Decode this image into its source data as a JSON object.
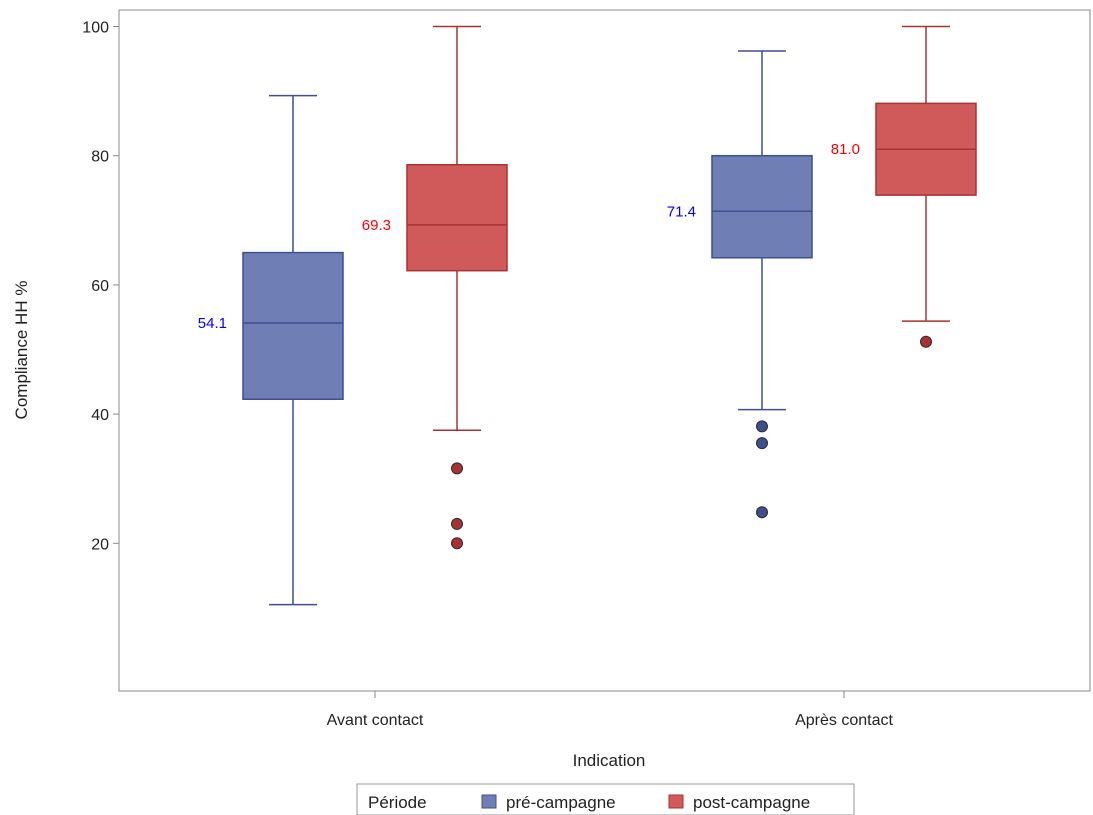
{
  "chart_data": {
    "type": "box",
    "xlabel": "Indication",
    "ylabel": "Compliance HH %",
    "ylim": [
      8,
      102
    ],
    "yticks": [
      20,
      40,
      60,
      80,
      100
    ],
    "categories": [
      "Avant contact",
      "Après contact"
    ],
    "grid": false,
    "legend": {
      "title": "Période",
      "position": "bottom-center",
      "entries": [
        "pré-campagne",
        "post-campagne"
      ]
    },
    "series": [
      {
        "name": "pré-campagne",
        "color": "#6f7fb5",
        "edge_color": "#3d4f8f",
        "label_color": "#0000ff",
        "boxes": [
          {
            "category": "Avant contact",
            "whisker_low": 10.5,
            "q1": 42.3,
            "median": 54.1,
            "q3": 65.0,
            "whisker_high": 89.3,
            "median_label": "54.1",
            "outliers": []
          },
          {
            "category": "Après contact",
            "whisker_low": 40.7,
            "q1": 64.2,
            "median": 71.4,
            "q3": 80.0,
            "whisker_high": 96.2,
            "median_label": "71.4",
            "outliers": [
              38.1,
              35.5,
              24.8
            ]
          }
        ]
      },
      {
        "name": "post-campagne",
        "color": "#d05a5a",
        "edge_color": "#a83232",
        "label_color": "#ff0000",
        "boxes": [
          {
            "category": "Avant contact",
            "whisker_low": 37.5,
            "q1": 62.2,
            "median": 69.3,
            "q3": 78.6,
            "whisker_high": 100,
            "median_label": "69.3",
            "outliers": [
              31.6,
              23.0,
              20.0
            ]
          },
          {
            "category": "Après contact",
            "whisker_low": 54.4,
            "q1": 73.9,
            "median": 81.0,
            "q3": 88.1,
            "whisker_high": 100,
            "median_label": "81.0",
            "outliers": [
              51.2
            ]
          }
        ]
      }
    ]
  }
}
